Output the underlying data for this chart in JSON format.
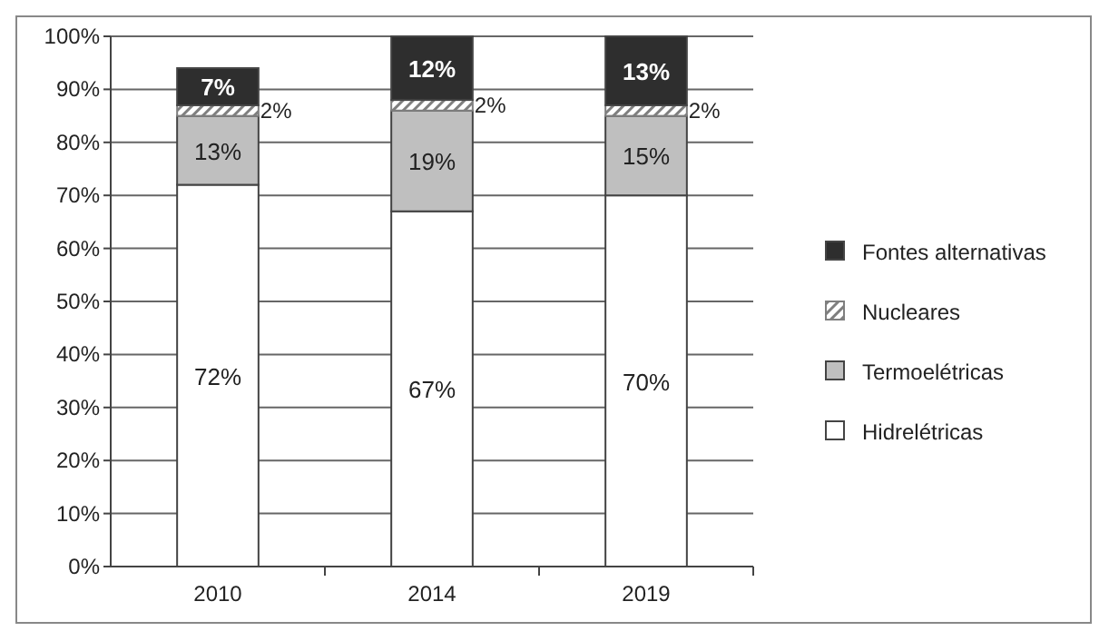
{
  "chart_data": {
    "type": "bar",
    "stacked": true,
    "categories": [
      "2010",
      "2014",
      "2019"
    ],
    "series": [
      {
        "name": "Hidrelétricas",
        "color": "#ffffff",
        "values": [
          72,
          67,
          70
        ],
        "value_labels": [
          "72%",
          "67%",
          "70%"
        ]
      },
      {
        "name": "Termoelétricas",
        "color": "#bfbfbf",
        "values": [
          13,
          19,
          15
        ],
        "value_labels": [
          "13%",
          "19%",
          "15%"
        ]
      },
      {
        "name": "Nucleares",
        "color": "#7f7f7f",
        "values": [
          2,
          2,
          2
        ],
        "value_labels": [
          "2%",
          "2%",
          "2%"
        ]
      },
      {
        "name": "Fontes alternativas",
        "color": "#2e2e2e",
        "values": [
          7,
          12,
          13
        ],
        "value_labels": [
          "7%",
          "12%",
          "13%"
        ]
      }
    ],
    "ylim": [
      0,
      100
    ],
    "yticks": [
      {
        "value": 0,
        "label": "0%"
      },
      {
        "value": 10,
        "label": "10%"
      },
      {
        "value": 20,
        "label": "20%"
      },
      {
        "value": 30,
        "label": "30%"
      },
      {
        "value": 40,
        "label": "40%"
      },
      {
        "value": 50,
        "label": "50%"
      },
      {
        "value": 60,
        "label": "60%"
      },
      {
        "value": 70,
        "label": "70%"
      },
      {
        "value": 80,
        "label": "80%"
      },
      {
        "value": 90,
        "label": "90%"
      },
      {
        "value": 100,
        "label": "100%"
      }
    ],
    "grid": "y",
    "legend": "right"
  }
}
